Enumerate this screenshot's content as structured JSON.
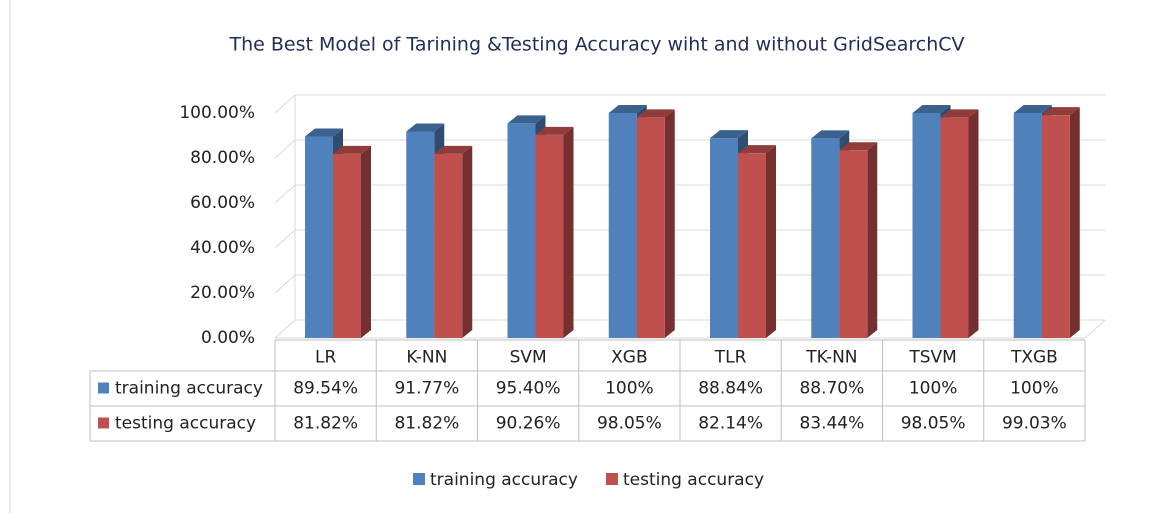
{
  "chart_data": {
    "type": "bar3d",
    "title": "The Best Model of Tarining &Testing Accuracy wiht and without GridSearchCV",
    "categories": [
      "LR",
      "K-NN",
      "SVM",
      "XGB",
      "TLR",
      "TK-NN",
      "TSVM",
      "TXGB"
    ],
    "series": [
      {
        "name": "training accuracy",
        "color": "#4f81bd",
        "values": [
          89.54,
          91.77,
          95.4,
          100,
          88.84,
          88.7,
          100,
          100
        ],
        "value_labels": [
          "89.54%",
          "91.77%",
          "95.40%",
          "100%",
          "88.84%",
          "88.70%",
          "100%",
          "100%"
        ]
      },
      {
        "name": "testing accuracy",
        "color": "#c0504d",
        "values": [
          81.82,
          81.82,
          90.26,
          98.05,
          82.14,
          83.44,
          98.05,
          99.03
        ],
        "value_labels": [
          "81.82%",
          "81.82%",
          "90.26%",
          "98.05%",
          "82.14%",
          "83.44%",
          "98.05%",
          "99.03%"
        ]
      }
    ],
    "ylim": [
      0,
      100
    ],
    "yticks": [
      {
        "value": 0,
        "label": "0.00%"
      },
      {
        "value": 20,
        "label": "20.00%"
      },
      {
        "value": 40,
        "label": "40.00%"
      },
      {
        "value": 60,
        "label": "60.00%"
      },
      {
        "value": 80,
        "label": "80.00%"
      },
      {
        "value": 100,
        "label": "100.00%"
      }
    ],
    "grid": true,
    "legend": "bottom"
  }
}
